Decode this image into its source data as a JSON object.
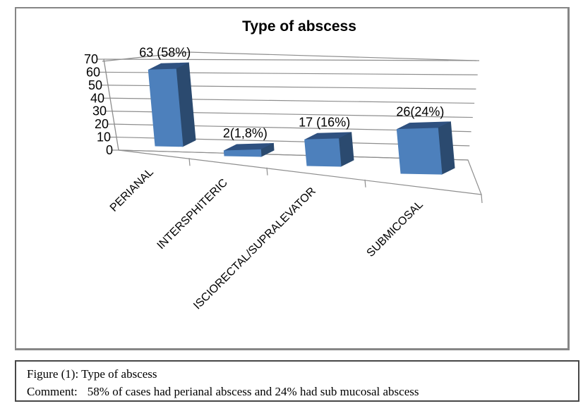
{
  "chart_data": {
    "type": "bar",
    "projection": "3d",
    "title": "Type of abscess",
    "categories": [
      "PERIANAL",
      "INTERSPHITERIC",
      "ISCIORECTAL/SUPRALEVATOR",
      "SUBMICOSAL"
    ],
    "values": [
      63,
      2,
      17,
      26
    ],
    "data_labels": [
      "63 (58%)",
      "2(1,8%)",
      "17 (16%)",
      "26(24%)"
    ],
    "xlabel": "",
    "ylabel": "",
    "ylim": [
      0,
      70
    ],
    "ytick_step": 10,
    "ytick_labels": [
      "0",
      "10",
      "20",
      "30",
      "40",
      "50",
      "60",
      "70"
    ],
    "grid": true,
    "legend_position": "none",
    "colors": {
      "bar_front": "#4d80bc",
      "bar_side": "#2b4a6f",
      "bar_top": "#2f5180",
      "gridline": "#8e8e8e",
      "axis": "#8e8e8e",
      "text": "#000000"
    }
  },
  "caption": {
    "figure_line": "Figure (1): Type of abscess",
    "comment_label": "Comment:",
    "comment_text": "58% of cases had perianal abscess and 24% had sub mucosal abscess"
  }
}
